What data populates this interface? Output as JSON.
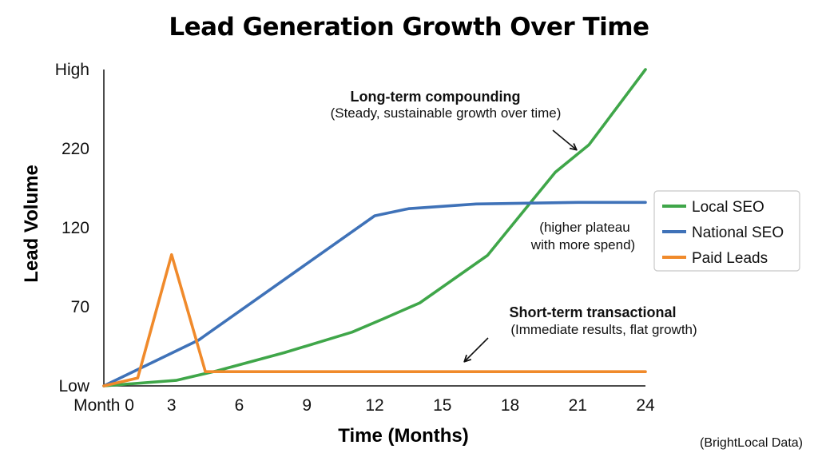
{
  "chart_data": {
    "type": "line",
    "title": "Lead Generation Growth Over Time",
    "xlabel": "Time (Months)",
    "ylabel": "Lead Volume",
    "xlim": [
      0,
      24
    ],
    "x_ticks": [
      {
        "value": 0,
        "label": "Month 0"
      },
      {
        "value": 3,
        "label": "3"
      },
      {
        "value": 6,
        "label": "6"
      },
      {
        "value": 9,
        "label": "9"
      },
      {
        "value": 12,
        "label": "12"
      },
      {
        "value": 15,
        "label": "15"
      },
      {
        "value": 18,
        "label": "18"
      },
      {
        "value": 21,
        "label": "21"
      },
      {
        "value": 24,
        "label": "24"
      }
    ],
    "y_ticks": [
      {
        "level": 0,
        "label": "Low"
      },
      {
        "level": 1,
        "label": "70"
      },
      {
        "level": 2,
        "label": "120"
      },
      {
        "level": 3,
        "label": "220"
      },
      {
        "level": 4,
        "label": "High"
      }
    ],
    "ylim_levels": [
      0,
      4
    ],
    "grid": false,
    "legend_position": "right",
    "series": [
      {
        "name": "Local SEO",
        "color": "#3fa649",
        "points": [
          [
            0,
            0.0
          ],
          [
            3.2,
            0.07
          ],
          [
            5,
            0.19
          ],
          [
            8,
            0.42
          ],
          [
            11,
            0.68
          ],
          [
            12.4,
            0.85
          ],
          [
            14,
            1.05
          ],
          [
            17,
            1.65
          ],
          [
            20,
            2.7
          ],
          [
            21.5,
            3.05
          ],
          [
            24,
            4.0
          ]
        ]
      },
      {
        "name": "National SEO",
        "color": "#3f72b8",
        "points": [
          [
            0,
            0.0
          ],
          [
            4.2,
            0.58
          ],
          [
            12,
            2.15
          ],
          [
            13.5,
            2.24
          ],
          [
            16.5,
            2.3
          ],
          [
            21,
            2.32
          ],
          [
            24,
            2.32
          ]
        ]
      },
      {
        "name": "Paid Leads",
        "color": "#f08a2b",
        "points": [
          [
            0,
            0.0
          ],
          [
            1.5,
            0.1
          ],
          [
            3,
            1.66
          ],
          [
            4.5,
            0.18
          ],
          [
            24,
            0.18
          ]
        ]
      }
    ],
    "annotations": [
      {
        "title": "Long-term compounding",
        "text": "(Steady, sustainable growth over time)"
      },
      {
        "title": "",
        "text": "(higher plateau",
        "text2": "with more spend)"
      },
      {
        "title": "Short-term transactional",
        "text": "(Immediate results, flat growth)"
      }
    ],
    "source": "(BrightLocal Data)"
  }
}
